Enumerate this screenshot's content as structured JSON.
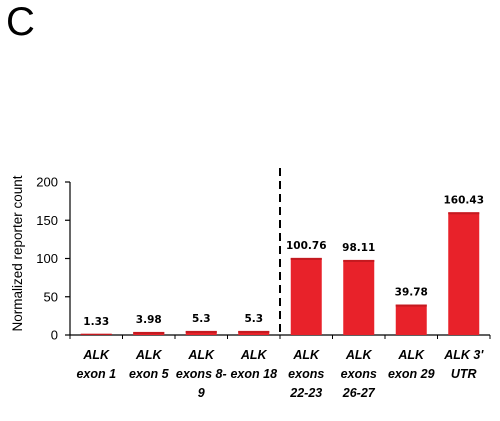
{
  "panel_letter": "C",
  "chart_data": {
    "type": "bar",
    "ylabel": "Normalized reporter count",
    "ylim": [
      0,
      200
    ],
    "yticks": [
      0,
      50,
      100,
      150,
      200
    ],
    "categories": [
      [
        "ALK",
        "exon 1"
      ],
      [
        "ALK",
        "exon 5"
      ],
      [
        "ALK",
        "exons 8-",
        "9"
      ],
      [
        "ALK",
        "exon 18"
      ],
      [
        "ALK",
        "exons",
        "22-23"
      ],
      [
        "ALK",
        "exons",
        "26-27"
      ],
      [
        "ALK",
        "exon 29"
      ],
      [
        "ALK 3'",
        "UTR"
      ]
    ],
    "values": [
      1.33,
      3.98,
      5.3,
      5.3,
      100.76,
      98.11,
      39.78,
      160.43
    ],
    "data_labels": [
      "1.33",
      "3.98",
      "5.3",
      "5.3",
      "100.76",
      "98.11",
      "39.78",
      "160.43"
    ],
    "bar_color": "#e8222a",
    "bar_top_color": "#c41a20",
    "divider": {
      "style": "dashed",
      "between_categories": [
        3,
        4
      ]
    },
    "grid": false,
    "legend": "none"
  }
}
